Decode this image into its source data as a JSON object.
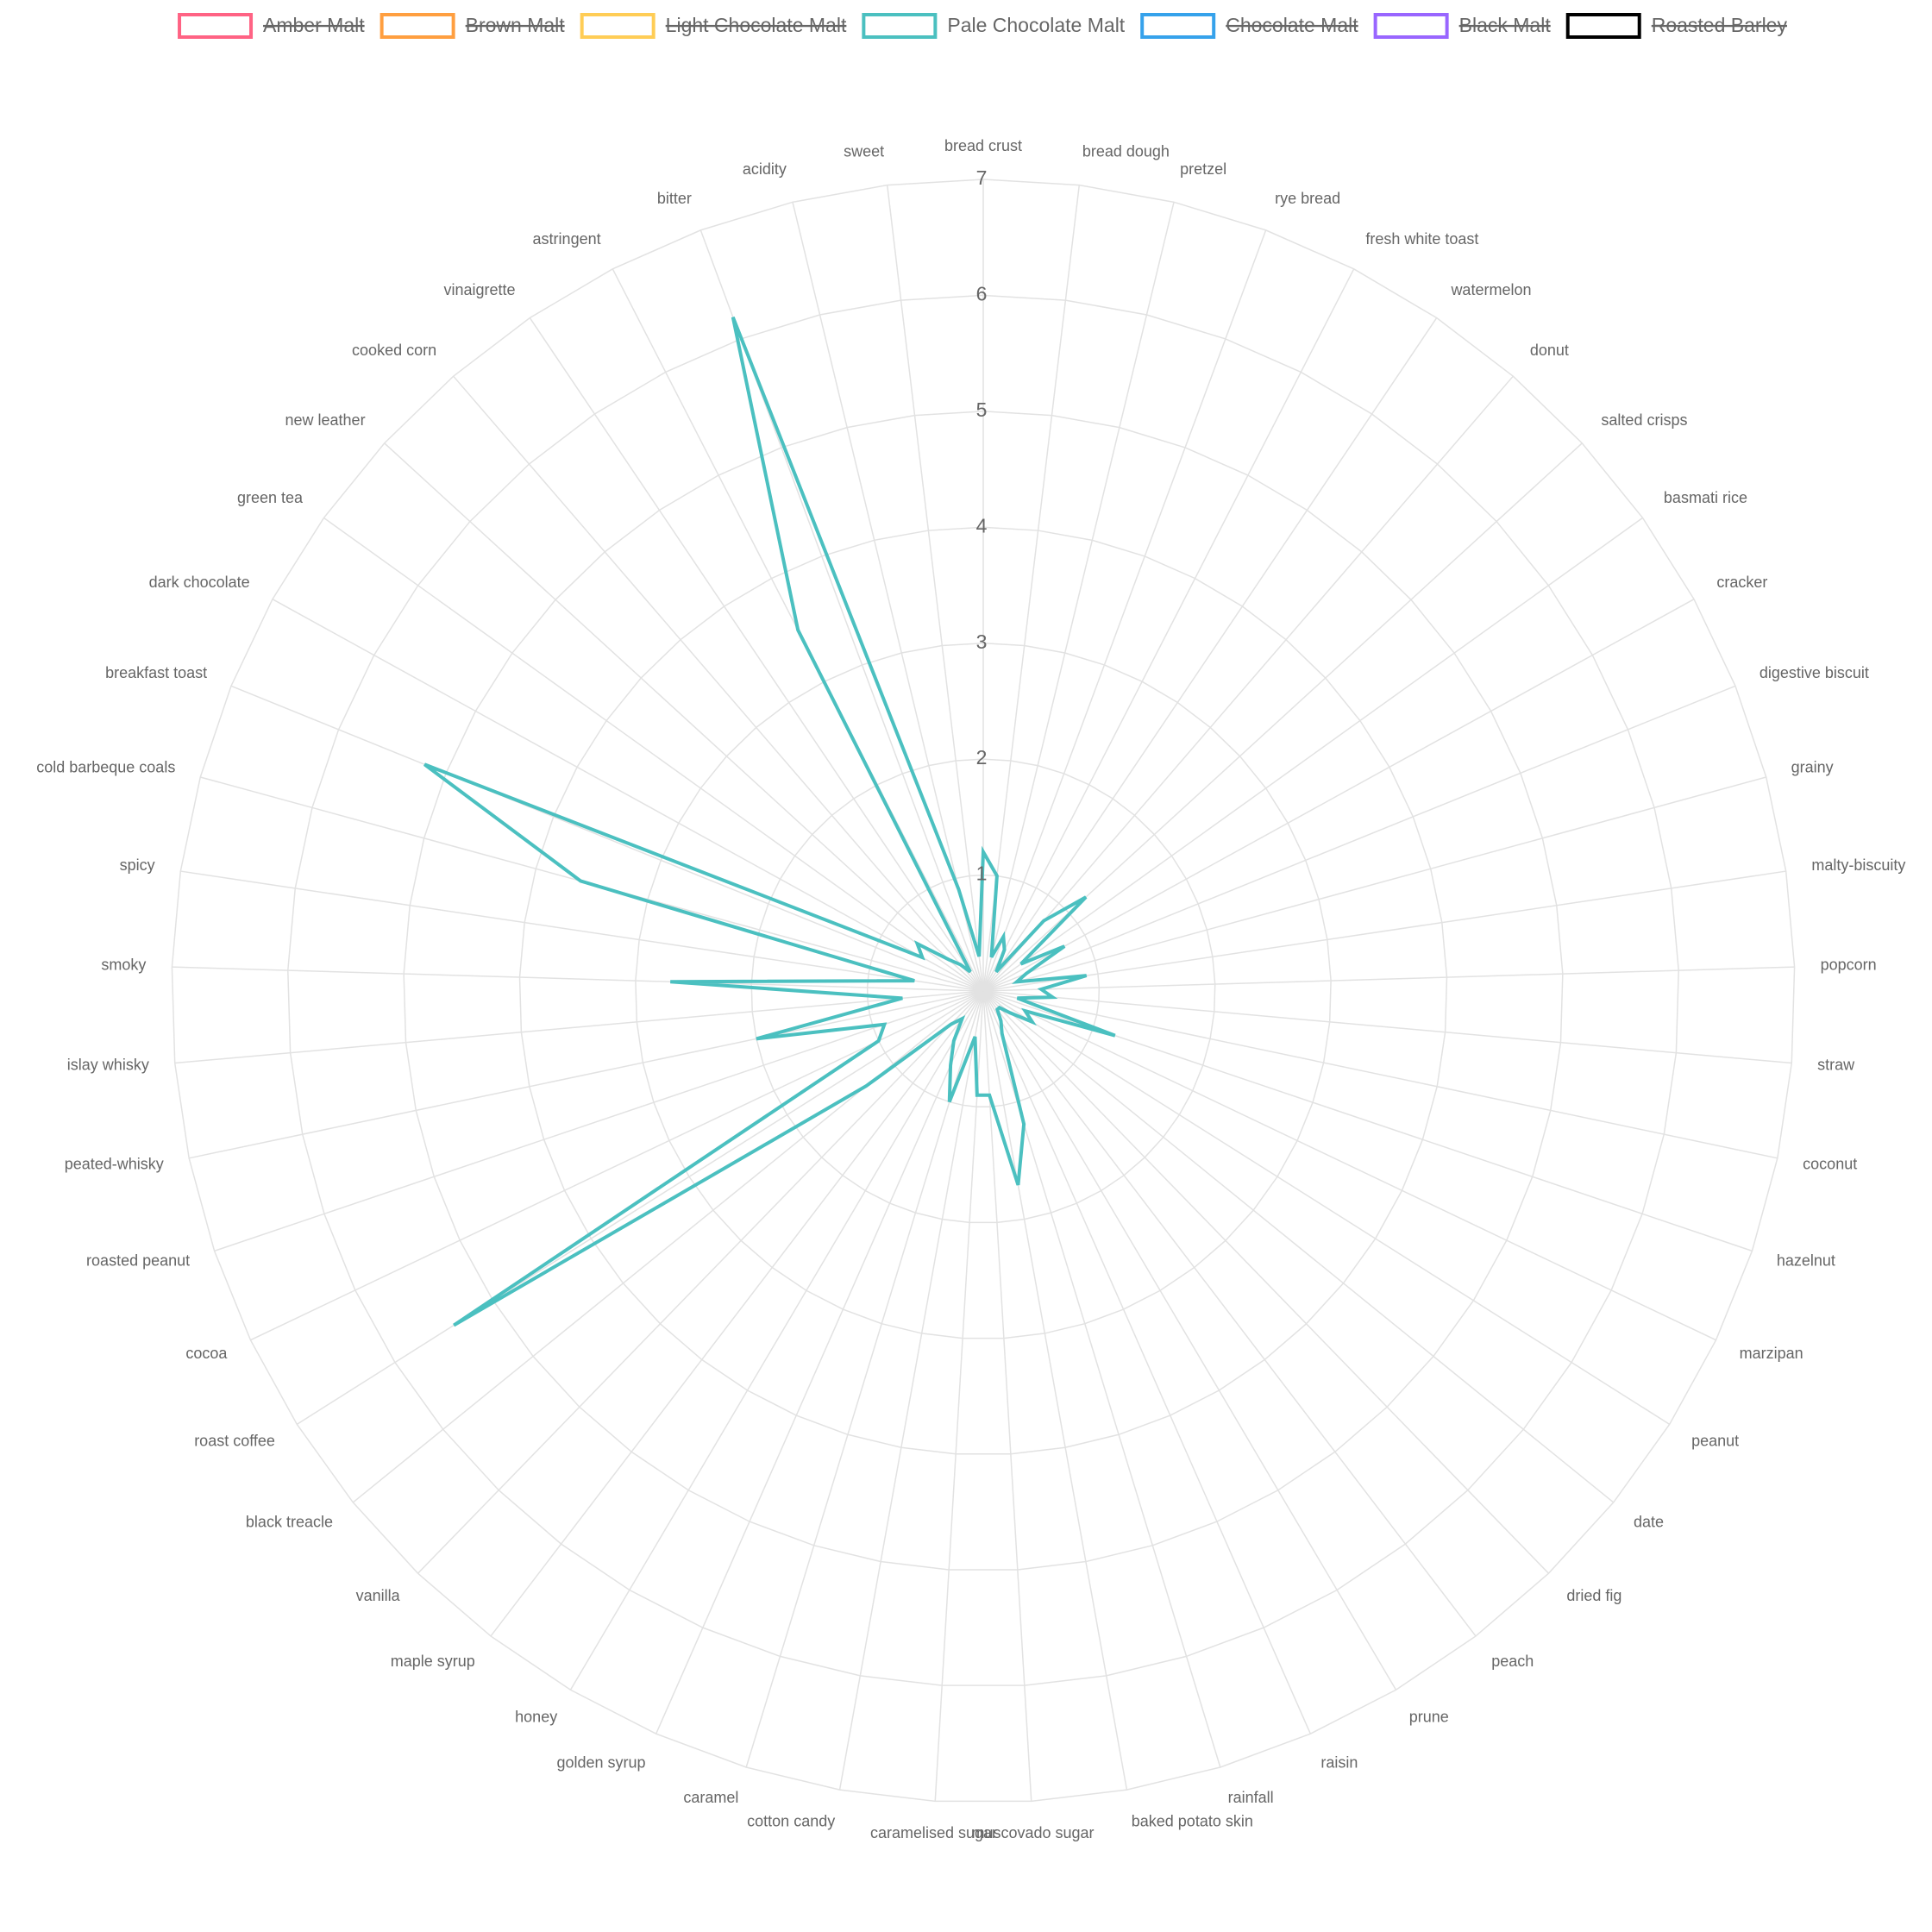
{
  "chart_data": {
    "type": "radar",
    "categories": [
      "bread crust",
      "bread dough",
      "pretzel",
      "rye bread",
      "fresh white toast",
      "watermelon",
      "donut",
      "salted crisps",
      "basmati rice",
      "cracker",
      "digestive biscuit",
      "grainy",
      "malty-biscuity",
      "popcorn",
      "straw",
      "coconut",
      "hazelnut",
      "marzipan",
      "peanut",
      "date",
      "dried fig",
      "peach",
      "prune",
      "raisin",
      "rainfall",
      "baked potato skin",
      "muscovado sugar",
      "caramelised sugar",
      "cotton candy",
      "caramel",
      "golden syrup",
      "honey",
      "maple syrup",
      "vanilla",
      "black treacle",
      "roast coffee",
      "cocoa",
      "roasted peanut",
      "peated-whisky",
      "islay whisky",
      "smoky",
      "spicy",
      "cold barbeque coals",
      "breakfast toast",
      "dark chocolate",
      "green tea",
      "new leather",
      "cooked corn",
      "vinaigrette",
      "astringent",
      "bitter",
      "acidity",
      "sweet"
    ],
    "series": [
      {
        "name": "Amber Malt",
        "color": "#ff6384",
        "hidden": true
      },
      {
        "name": "Brown Malt",
        "color": "#ff9f40",
        "hidden": true
      },
      {
        "name": "Light Chocolate Malt",
        "color": "#ffcd56",
        "hidden": true
      },
      {
        "name": "Pale Chocolate Malt",
        "color": "#4bc0c0",
        "hidden": false,
        "values": [
          1.2,
          1.0,
          0.3,
          0.5,
          0.4,
          0.2,
          0.8,
          1.2,
          0.4,
          0.8,
          0.4,
          0.3,
          0.9,
          0.5,
          0.6,
          0.3,
          1.2,
          0.4,
          0.5,
          0.3,
          0.2,
          0.2,
          0.3,
          0.4,
          1.2,
          1.7,
          0.9,
          0.9,
          0.4,
          1.0,
          0.7,
          0.5,
          0.3,
          0.4,
          1.3,
          5.4,
          1.0,
          0.9,
          2.0,
          0.7,
          2.7,
          0.6,
          3.6,
          5.2,
          0.6,
          0.7,
          0.4,
          0.3,
          0.2,
          3.5,
          6.2,
          0.9,
          0.3
        ]
      },
      {
        "name": "Chocolate Malt",
        "color": "#36a2eb",
        "hidden": true
      },
      {
        "name": "Black Malt",
        "color": "#9966ff",
        "hidden": true
      },
      {
        "name": "Roasted Barley",
        "color": "#000000",
        "hidden": true
      }
    ],
    "rlim": [
      0,
      7
    ],
    "rticks": [
      1,
      2,
      3,
      4,
      5,
      6,
      7
    ],
    "grid": true,
    "legend": "top"
  }
}
